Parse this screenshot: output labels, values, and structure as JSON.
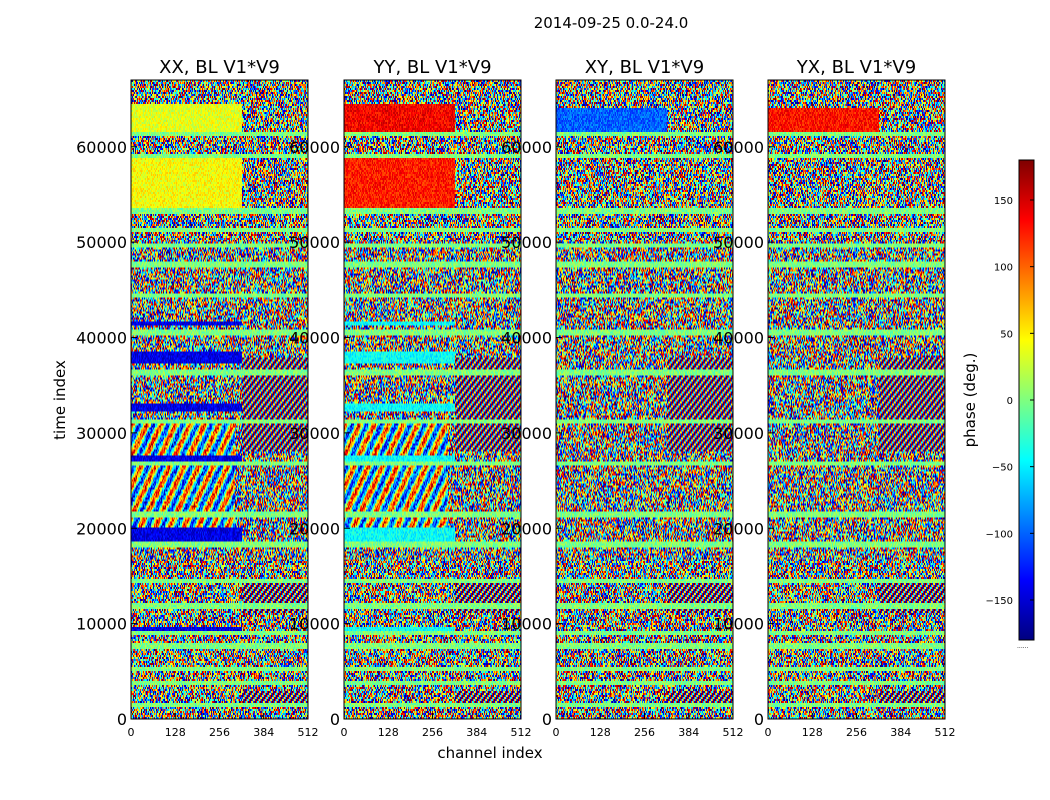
{
  "figure": {
    "suptitle": "2014-09-25 0.0-24.0",
    "xlabel": "channel index",
    "ylabel": "time index",
    "colorbar_label": "phase (deg.)",
    "colorbar_extra": "......"
  },
  "chart_data": {
    "type": "heatmap",
    "colormap": "jet",
    "panels": [
      {
        "title": "XX, BL V1*V9",
        "kind": "XX"
      },
      {
        "title": "YY, BL V1*V9",
        "kind": "YY"
      },
      {
        "title": "XY, BL V1*V9",
        "kind": "XY"
      },
      {
        "title": "YX, BL V1*V9",
        "kind": "YX"
      }
    ],
    "xlim": [
      0,
      512
    ],
    "ylim": [
      0,
      67000
    ],
    "xticks": [
      0,
      128,
      256,
      384,
      512
    ],
    "yticks": [
      0,
      10000,
      20000,
      30000,
      40000,
      50000,
      60000
    ],
    "colorbar": {
      "range": [
        -180,
        180
      ],
      "ticks": [
        -150,
        -100,
        -50,
        0,
        50,
        100,
        150
      ]
    },
    "colors": {
      "jet": [
        "#00007f",
        "#0000ff",
        "#007fff",
        "#00ffff",
        "#7fff7f",
        "#ffff00",
        "#ff7f00",
        "#ff0000",
        "#7f0000"
      ]
    }
  }
}
